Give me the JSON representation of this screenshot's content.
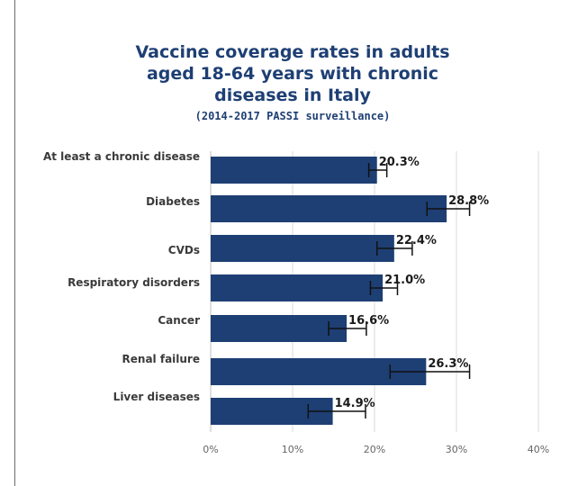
{
  "chart_data": {
    "type": "bar",
    "orientation": "horizontal",
    "title_lines": [
      "Vaccine coverage rates in adults",
      "aged 18-64 years with chronic",
      "diseases in Italy"
    ],
    "subtitle": "(2014-2017 PASSI surveillance)",
    "categories": [
      "At least a chronic disease",
      "Diabetes",
      "CVDs",
      "Respiratory disorders",
      "Cancer",
      "Renal failure",
      "Liver diseases"
    ],
    "values": [
      20.3,
      28.8,
      22.4,
      21.0,
      16.6,
      26.3,
      14.9
    ],
    "value_labels": [
      "20.3%",
      "28.8%",
      "22.4%",
      "21.0%",
      "16.6%",
      "26.3%",
      "14.9%"
    ],
    "error_low": [
      19.3,
      26.4,
      20.3,
      19.5,
      14.4,
      21.9,
      11.9
    ],
    "error_high": [
      21.5,
      31.6,
      24.6,
      22.8,
      19.0,
      31.6,
      18.9
    ],
    "xlim": [
      0,
      40
    ],
    "xticks": [
      0,
      10,
      20,
      30,
      40
    ],
    "xtick_labels": [
      "0%",
      "10%",
      "20%",
      "30%",
      "40%"
    ],
    "grid": true,
    "bar_color": "#1e3f74"
  }
}
